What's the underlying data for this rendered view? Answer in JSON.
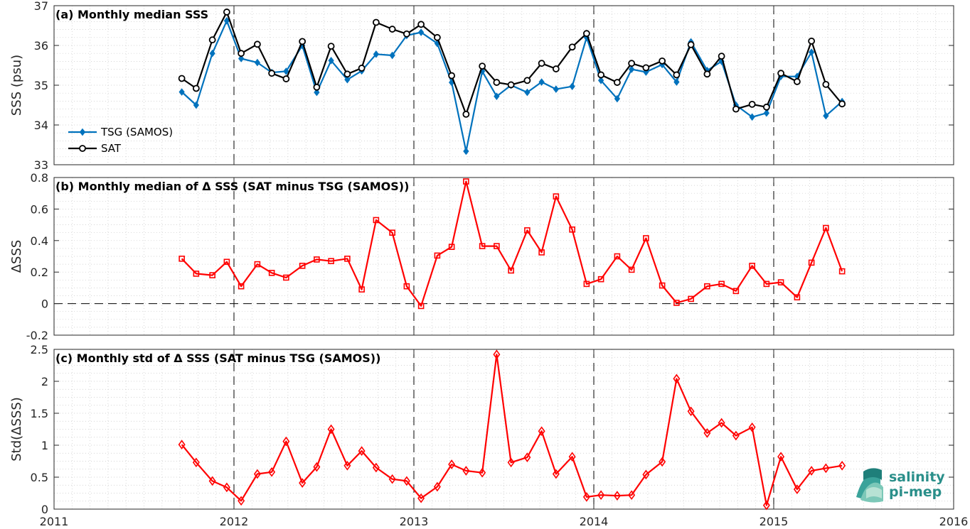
{
  "chart_data": [
    {
      "type": "line",
      "title": "(a) Monthly median SSS",
      "ylabel": "SSS (psu)",
      "ylim": [
        33,
        37
      ],
      "yticks": [
        "33",
        "34",
        "35",
        "36",
        "37"
      ],
      "xlim": [
        2011,
        2016
      ],
      "xticks": [
        "2011",
        "2012",
        "2013",
        "2014",
        "2015",
        "2016"
      ],
      "x": [
        2011.71,
        2011.79,
        2011.88,
        2011.96,
        2012.04,
        2012.13,
        2012.21,
        2012.29,
        2012.38,
        2012.46,
        2012.54,
        2012.63,
        2012.71,
        2012.79,
        2012.88,
        2012.96,
        2013.04,
        2013.13,
        2013.21,
        2013.29,
        2013.38,
        2013.46,
        2013.54,
        2013.63,
        2013.71,
        2013.79,
        2013.88,
        2013.96,
        2014.04,
        2014.13,
        2014.21,
        2014.29,
        2014.38,
        2014.46,
        2014.54,
        2014.63,
        2014.71,
        2014.79,
        2014.88,
        2014.96,
        2015.04,
        2015.13,
        2015.21,
        2015.29,
        2015.38
      ],
      "series": [
        {
          "name": "TSG (SAMOS)",
          "color": "#0072bd",
          "marker": "diamond-filled",
          "values": [
            34.83,
            34.5,
            35.8,
            36.62,
            35.67,
            35.57,
            35.32,
            35.35,
            36.0,
            34.82,
            35.62,
            35.14,
            35.36,
            35.78,
            35.75,
            36.25,
            36.33,
            36.05,
            35.07,
            33.34,
            35.35,
            34.72,
            35.0,
            34.82,
            35.08,
            34.9,
            34.97,
            36.2,
            35.12,
            34.66,
            35.4,
            35.33,
            35.52,
            35.08,
            36.09,
            35.37,
            35.6,
            34.5,
            34.2,
            34.3,
            35.22,
            35.22,
            35.83,
            34.23,
            34.59
          ]
        },
        {
          "name": "SAT",
          "color": "#000000",
          "marker": "circle",
          "values": [
            35.17,
            34.92,
            36.14,
            36.84,
            35.8,
            36.03,
            35.3,
            35.16,
            36.1,
            34.95,
            35.98,
            35.28,
            35.43,
            36.58,
            36.41,
            36.29,
            36.53,
            36.2,
            35.24,
            34.27,
            35.48,
            35.07,
            35.01,
            35.12,
            35.55,
            35.41,
            35.96,
            36.3,
            35.26,
            35.07,
            35.55,
            35.44,
            35.61,
            35.26,
            36.02,
            35.28,
            35.73,
            34.4,
            34.52,
            34.45,
            35.3,
            35.09,
            36.11,
            35.02,
            34.53
          ]
        }
      ],
      "legend": {
        "placement": "bottom-left"
      },
      "vlines_at": [
        2012,
        2013,
        2014,
        2015
      ],
      "grid": "minor-dotted"
    },
    {
      "type": "line",
      "title": "(b) Monthly median of Δ SSS (SAT minus TSG (SAMOS))",
      "ylabel": "ΔSSS",
      "ylim": [
        -0.2,
        0.8
      ],
      "yticks": [
        "-0.2",
        "0",
        "0.2",
        "0.4",
        "0.6",
        "0.8"
      ],
      "xlim": [
        2011,
        2016
      ],
      "xticks": [
        "2011",
        "2012",
        "2013",
        "2014",
        "2015",
        "2016"
      ],
      "x": [
        2011.71,
        2011.79,
        2011.88,
        2011.96,
        2012.04,
        2012.13,
        2012.21,
        2012.29,
        2012.38,
        2012.46,
        2012.54,
        2012.63,
        2012.71,
        2012.79,
        2012.88,
        2012.96,
        2013.04,
        2013.13,
        2013.21,
        2013.29,
        2013.38,
        2013.46,
        2013.54,
        2013.63,
        2013.71,
        2013.79,
        2013.88,
        2013.96,
        2014.04,
        2014.13,
        2014.21,
        2014.29,
        2014.38,
        2014.46,
        2014.54,
        2014.63,
        2014.71,
        2014.79,
        2014.88,
        2014.96,
        2015.04,
        2015.13,
        2015.21,
        2015.29,
        2015.38
      ],
      "series": [
        {
          "color": "#ff0000",
          "marker": "square",
          "values": [
            0.285,
            0.19,
            0.18,
            0.265,
            0.11,
            0.25,
            0.195,
            0.165,
            0.24,
            0.28,
            0.27,
            0.285,
            0.09,
            0.53,
            0.45,
            0.11,
            -0.015,
            0.305,
            0.36,
            0.775,
            0.365,
            0.365,
            0.21,
            0.465,
            0.325,
            0.68,
            0.47,
            0.125,
            0.155,
            0.3,
            0.215,
            0.415,
            0.115,
            0.005,
            0.03,
            0.11,
            0.125,
            0.08,
            0.24,
            0.125,
            0.135,
            0.04,
            0.26,
            0.48,
            0.205
          ]
        }
      ],
      "hline_at": 0,
      "vlines_at": [
        2012,
        2013,
        2014,
        2015
      ],
      "grid": "minor-dotted"
    },
    {
      "type": "line",
      "title": "(c) Monthly std of Δ SSS (SAT minus TSG (SAMOS))",
      "ylabel": "Std(ΔSSS)",
      "ylim": [
        0,
        2.5
      ],
      "yticks": [
        "0",
        "0.5",
        "1",
        "1.5",
        "2",
        "2.5"
      ],
      "xlim": [
        2011,
        2016
      ],
      "xticks": [
        "2011",
        "2012",
        "2013",
        "2014",
        "2015",
        "2016"
      ],
      "x": [
        2011.71,
        2011.79,
        2011.88,
        2011.96,
        2012.04,
        2012.13,
        2012.21,
        2012.29,
        2012.38,
        2012.46,
        2012.54,
        2012.63,
        2012.71,
        2012.79,
        2012.88,
        2012.96,
        2013.04,
        2013.13,
        2013.21,
        2013.29,
        2013.38,
        2013.46,
        2013.54,
        2013.63,
        2013.71,
        2013.79,
        2013.88,
        2013.96,
        2014.04,
        2014.13,
        2014.21,
        2014.29,
        2014.38,
        2014.46,
        2014.54,
        2014.63,
        2014.71,
        2014.79,
        2014.88,
        2014.96,
        2015.04,
        2015.13,
        2015.21,
        2015.29,
        2015.38
      ],
      "series": [
        {
          "color": "#ff0000",
          "marker": "diamond",
          "values": [
            1.01,
            0.73,
            0.44,
            0.34,
            0.13,
            0.55,
            0.58,
            1.06,
            0.41,
            0.66,
            1.25,
            0.68,
            0.91,
            0.65,
            0.47,
            0.44,
            0.17,
            0.35,
            0.7,
            0.6,
            0.57,
            2.42,
            0.73,
            0.81,
            1.22,
            0.55,
            0.82,
            0.19,
            0.22,
            0.21,
            0.22,
            0.54,
            0.74,
            2.04,
            1.53,
            1.19,
            1.35,
            1.15,
            1.28,
            0.06,
            0.82,
            0.31,
            0.6,
            0.64,
            0.68
          ]
        }
      ],
      "vlines_at": [
        2012,
        2013,
        2014,
        2015
      ],
      "grid": "minor-dotted"
    }
  ],
  "logo": {
    "line1": "salinity",
    "line2": "pi-mep"
  }
}
